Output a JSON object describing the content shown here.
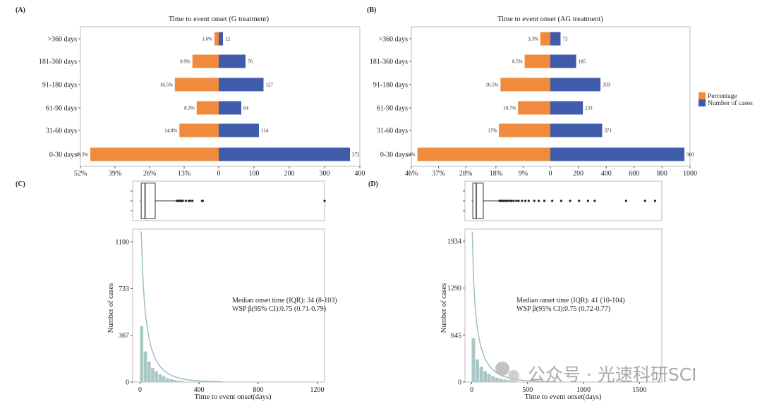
{
  "colors": {
    "percentage": "#F08A3C",
    "cases": "#3F5CAA",
    "hist": "#A8C8C6",
    "curve": "#9CC0BE",
    "frame": "#BBBBBB"
  },
  "legend": {
    "items": [
      "Percentage",
      "Number of cases"
    ]
  },
  "watermark": "公众号 · 光速科研SCI",
  "chart_data": [
    {
      "panel": "(A)",
      "type": "bar",
      "title": "Time to event onset (G treatment)",
      "categories": [
        "0-30 days",
        "31-60 days",
        "61-90 days",
        "91-180 days",
        "181-360 days",
        ">360 days"
      ],
      "series": [
        {
          "name": "Percentage",
          "values": [
            48.3,
            14.8,
            8.3,
            16.5,
            9.9,
            1.6
          ],
          "labels": [
            "48.3%",
            "14.8%",
            "8.3%",
            "16.5%",
            "9.9%",
            "1.6%"
          ]
        },
        {
          "name": "Number of cases",
          "values": [
            372,
            114,
            64,
            127,
            76,
            12
          ],
          "labels": [
            "372",
            "114",
            "64",
            "127",
            "76",
            "12"
          ]
        }
      ],
      "left_ticks": [
        "52%",
        "39%",
        "26%",
        "13%",
        "0"
      ],
      "right_ticks": [
        "100",
        "200",
        "300",
        "400"
      ],
      "pct_lim": 52,
      "count_lim": 400
    },
    {
      "panel": "(B)",
      "type": "bar",
      "title": "Time to event onset (AG treatment)",
      "categories": [
        "0-30 days",
        "31-60 days",
        "61-90 days",
        "91-180 days",
        "181-360 days",
        ">360 days"
      ],
      "series": [
        {
          "name": "Percentage",
          "values": [
            44,
            17,
            10.7,
            16.5,
            8.5,
            3.3
          ],
          "labels": [
            "44%",
            "17%",
            "10.7%",
            "16.5%",
            "8.5%",
            "3.3%"
          ]
        },
        {
          "name": "Number of cases",
          "values": [
            960,
            371,
            233,
            359,
            185,
            73
          ],
          "labels": [
            "960",
            "371",
            "233",
            "359",
            "185",
            "73"
          ]
        }
      ],
      "left_ticks": [
        "46%",
        "37%",
        "28%",
        "18%",
        "9%",
        "0"
      ],
      "right_ticks": [
        "200",
        "400",
        "600",
        "800",
        "1000"
      ],
      "pct_lim": 46,
      "count_lim": 1000
    },
    {
      "panel": "(C)",
      "type": "bar",
      "subtype": "histogram with boxplot",
      "xlabel": "Time to event onset(days)",
      "ylabel": "Number of cases",
      "x_ticks": [
        "0",
        "400",
        "800",
        "1200"
      ],
      "y_ticks": [
        "0",
        "367",
        "733",
        "1100"
      ],
      "xlim": [
        -50,
        1250
      ],
      "ylim": [
        0,
        1200
      ],
      "bin_width": 25,
      "bin_counts": [
        440,
        240,
        160,
        110,
        85,
        60,
        45,
        30,
        22,
        16,
        12,
        9
      ],
      "boxplot": {
        "min": 0,
        "q1": 8,
        "median": 34,
        "q3": 103,
        "whisker_high": 245,
        "outliers": [
          250,
          255,
          262,
          268,
          275,
          283,
          290,
          310,
          330,
          340,
          355,
          420,
          425,
          1250
        ]
      },
      "annotations": [
        "Median onset time (IQR): 34 (8-103)",
        "WSP β(95% CI):0.75 (0.71-0.79)"
      ]
    },
    {
      "panel": "(D)",
      "type": "bar",
      "subtype": "histogram with boxplot",
      "xlabel": "Time to event onset(days)",
      "ylabel": "Number of cases",
      "x_ticks": [
        "0",
        "500",
        "1000",
        "1500"
      ],
      "y_ticks": [
        "0",
        "645",
        "1290",
        "1934"
      ],
      "xlim": [
        -60,
        1700
      ],
      "ylim": [
        0,
        2100
      ],
      "bin_width": 35,
      "bin_counts": [
        600,
        310,
        210,
        150,
        110,
        80,
        60,
        45,
        35,
        25,
        18,
        12
      ],
      "boxplot": {
        "min": 0,
        "q1": 10,
        "median": 41,
        "q3": 104,
        "whisker_high": 245,
        "outliers": [
          250,
          262,
          275,
          290,
          305,
          320,
          340,
          355,
          375,
          400,
          420,
          450,
          480,
          510,
          560,
          600,
          650,
          720,
          800,
          880,
          960,
          1040,
          1100,
          1380,
          1550,
          1640
        ]
      },
      "annotations": [
        "Median onset time (IQR): 41 (10-104)",
        "WSP β(95% CI):0.75 (0.72-0.77)"
      ]
    }
  ]
}
